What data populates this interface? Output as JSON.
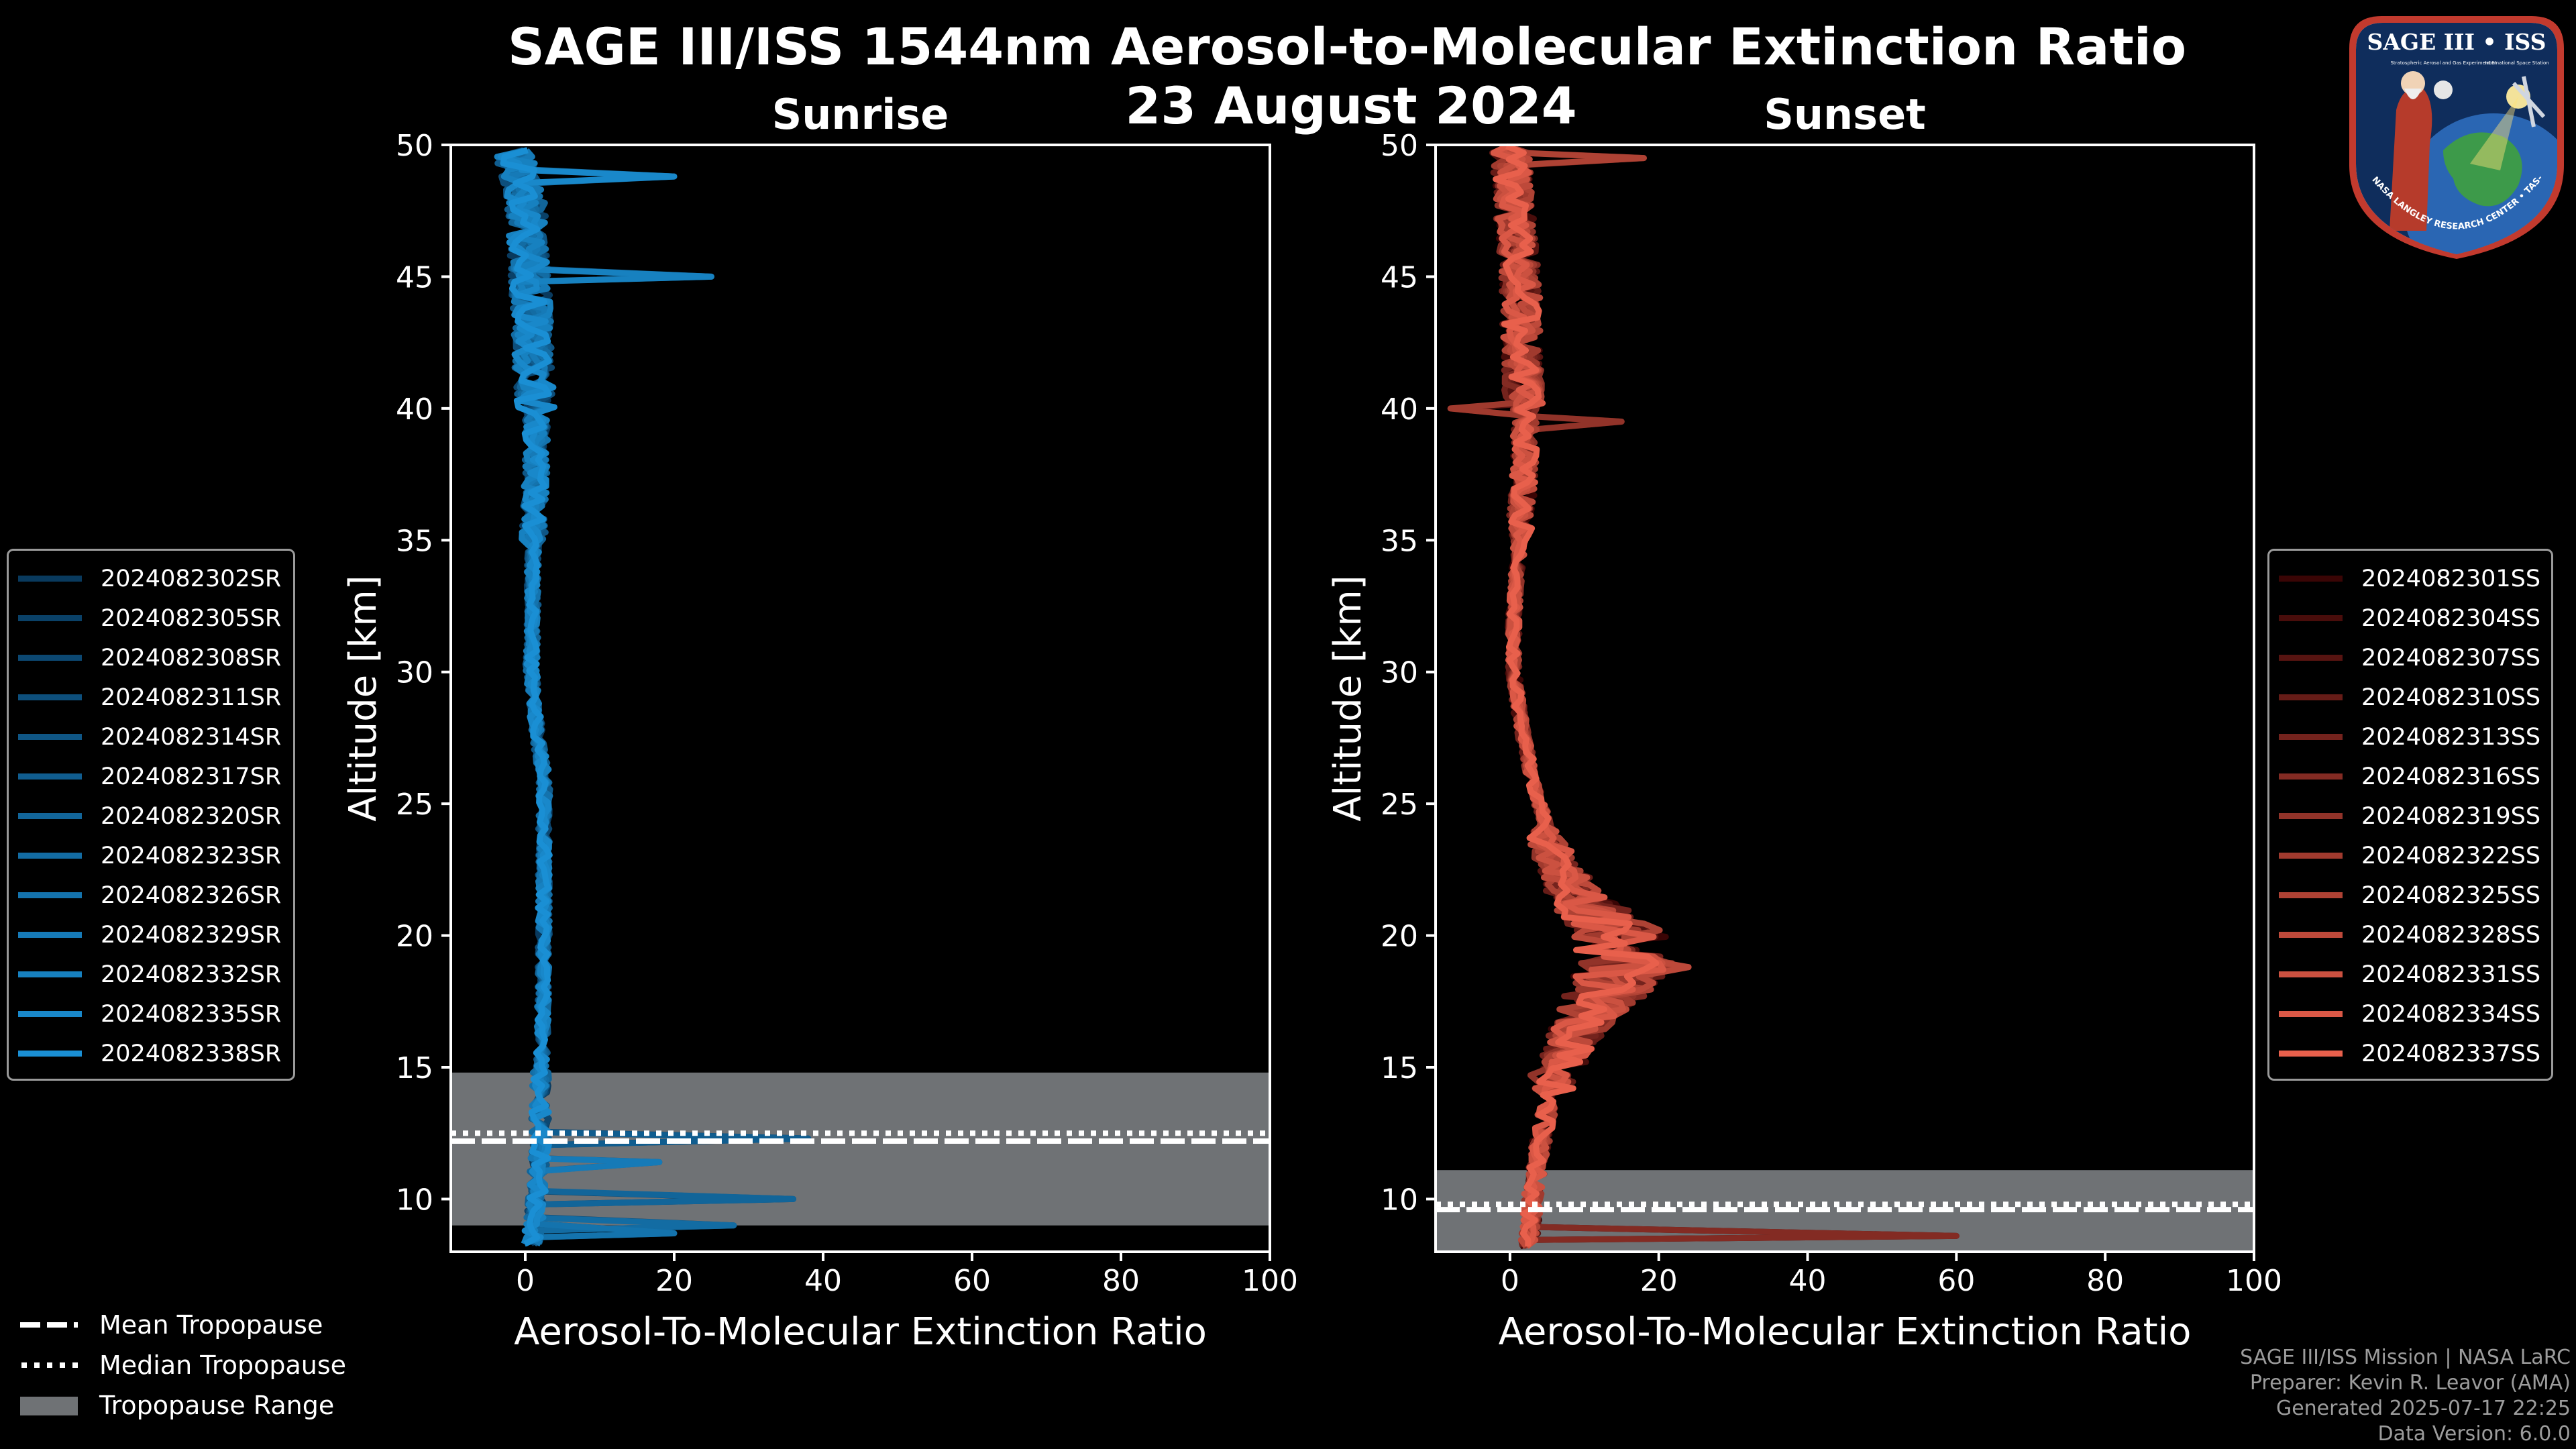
{
  "title": {
    "main": "SAGE III/ISS 1544nm Aerosol-to-Molecular Extinction Ratio",
    "date": "23 August 2024"
  },
  "chart_data": [
    {
      "type": "line",
      "panel": "left",
      "title": "Sunrise",
      "xlabel": "Aerosol-To-Molecular Extinction Ratio",
      "ylabel": "Altitude [km]",
      "xlim": [
        -10,
        100
      ],
      "ylim": [
        8,
        50
      ],
      "xticks": [
        0,
        20,
        40,
        60,
        80,
        100
      ],
      "yticks": [
        10,
        15,
        20,
        25,
        30,
        35,
        40,
        45,
        50
      ],
      "tropopause": {
        "range": [
          9,
          14.8
        ],
        "mean": 12.2,
        "median": 12.5
      },
      "color_dark": "#093a5e",
      "color_light": "#1a8fd4",
      "series_names": [
        "2024082302SR",
        "2024082305SR",
        "2024082308SR",
        "2024082311SR",
        "2024082314SR",
        "2024082317SR",
        "2024082320SR",
        "2024082323SR",
        "2024082326SR",
        "2024082329SR",
        "2024082332SR",
        "2024082335SR",
        "2024082338SR"
      ],
      "profile": {
        "altitude": [
          8.5,
          10,
          12,
          14,
          16,
          18,
          20,
          22,
          24,
          25,
          26,
          28,
          30,
          32,
          34,
          36,
          38,
          40,
          42,
          44,
          46,
          48,
          50
        ],
        "ratio": [
          1.0,
          1.5,
          2.0,
          2.0,
          2.3,
          2.4,
          2.5,
          2.5,
          2.5,
          2.6,
          2.5,
          1.5,
          0.8,
          1.0,
          1.0,
          1.2,
          1.5,
          1.5,
          1.0,
          0.8,
          0.5,
          0.0,
          -2.0
        ]
      },
      "spikes": [
        {
          "altitude": 12.3,
          "value": 38
        },
        {
          "altitude": 10.0,
          "value": 36
        },
        {
          "altitude": 9.0,
          "value": 28
        },
        {
          "altitude": 8.7,
          "value": 20
        },
        {
          "altitude": 11.4,
          "value": 18
        },
        {
          "altitude": 45.0,
          "value": 25
        },
        {
          "altitude": 48.8,
          "value": 20
        }
      ]
    },
    {
      "type": "line",
      "panel": "right",
      "title": "Sunset",
      "xlabel": "Aerosol-To-Molecular Extinction Ratio",
      "ylabel": "Altitude [km]",
      "xlim": [
        -10,
        100
      ],
      "ylim": [
        8,
        50
      ],
      "xticks": [
        0,
        20,
        40,
        60,
        80,
        100
      ],
      "yticks": [
        10,
        15,
        20,
        25,
        30,
        35,
        40,
        45,
        50
      ],
      "tropopause": {
        "range": [
          8,
          11.1
        ],
        "mean": 9.6,
        "median": 9.8
      },
      "color_dark": "#3a0505",
      "color_light": "#e8604c",
      "series_names": [
        "2024082301SS",
        "2024082304SS",
        "2024082307SS",
        "2024082310SS",
        "2024082313SS",
        "2024082316SS",
        "2024082319SS",
        "2024082322SS",
        "2024082325SS",
        "2024082328SS",
        "2024082331SS",
        "2024082334SS",
        "2024082337SS"
      ],
      "profile": {
        "altitude": [
          8.2,
          10,
          12,
          14,
          16,
          17,
          18,
          19,
          20,
          21,
          22,
          24,
          26,
          28,
          30,
          32,
          34,
          36,
          38,
          40,
          42,
          44,
          46,
          48,
          50
        ],
        "ratio": [
          2.5,
          3.0,
          4.0,
          5.5,
          9.0,
          12.0,
          15.0,
          17.0,
          16.0,
          12.0,
          8.0,
          5.0,
          3.0,
          1.5,
          0.5,
          0.5,
          1.0,
          1.5,
          2.0,
          2.0,
          1.5,
          1.5,
          1.0,
          0.5,
          0.0
        ]
      },
      "spikes": [
        {
          "altitude": 8.6,
          "value": 60
        },
        {
          "altitude": 39.5,
          "value": 15
        },
        {
          "altitude": 40.0,
          "value": -8
        },
        {
          "altitude": 49.5,
          "value": 18
        },
        {
          "altitude": 18.8,
          "value": 24
        }
      ]
    }
  ],
  "tropopause_legend": {
    "mean": "Mean Tropopause",
    "median": "Median Tropopause",
    "range": "Tropopause Range"
  },
  "credits": {
    "line1": "SAGE III/ISS Mission | NASA LaRC",
    "line2": "Preparer: Kevin R. Leavor (AMA)",
    "line3": "Generated 2025-07-17 22:25",
    "line4": "Data Version: 6.0.0"
  },
  "badge": {
    "top": "SAGE III • ISS",
    "sub": "Stratospheric Aerosol and Gas Experiment III",
    "sub2": "International Space Station",
    "ring": "BALL • NASA LANGLEY RESEARCH CENTER • TAS-I • ESA"
  },
  "colors": {
    "background": "#000000",
    "axis": "#ffffff",
    "tropopause_fill": "#6f7275",
    "grid": "none"
  }
}
